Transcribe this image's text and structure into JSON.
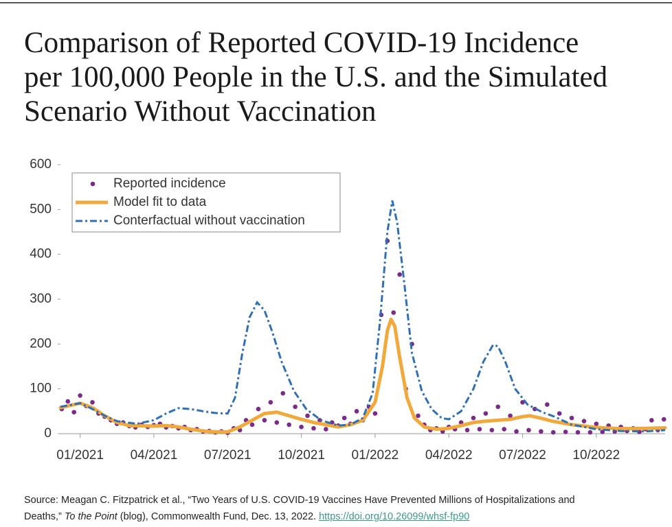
{
  "chart_data": {
    "type": "line",
    "title": [
      "Comparison of Reported COVID-19 Incidence",
      "per 100,000 People in the U.S. and the Simulated",
      "Scenario Without Vaccination"
    ],
    "xlim": [
      -0.8,
      23.8
    ],
    "xticks": [
      {
        "value": 0,
        "label": "01/2021"
      },
      {
        "value": 3,
        "label": "04/2021"
      },
      {
        "value": 6,
        "label": "07/2021"
      },
      {
        "value": 9,
        "label": "10/2021"
      },
      {
        "value": 12,
        "label": "01/2022"
      },
      {
        "value": 15,
        "label": "04/2022"
      },
      {
        "value": 18,
        "label": "07/2022"
      },
      {
        "value": 21,
        "label": "10/2022"
      }
    ],
    "ylim": [
      0,
      600
    ],
    "yticks": [
      0,
      100,
      200,
      300,
      400,
      500,
      600
    ],
    "legend": "top-left",
    "series": [
      {
        "name": "Reported incidence",
        "kind": "scatter",
        "color": "#7a2a8a",
        "x": [
          -0.75,
          -0.5,
          -0.25,
          0,
          0.25,
          0.5,
          0.75,
          1,
          1.25,
          1.5,
          1.75,
          2,
          2.25,
          2.5,
          2.75,
          3,
          3.25,
          3.5,
          3.75,
          4,
          4.25,
          4.5,
          4.75,
          5,
          5.25,
          5.5,
          5.75,
          6,
          6.25,
          6.5,
          6.75,
          7,
          7.25,
          7.5,
          7.75,
          8,
          8.25,
          8.5,
          8.75,
          9,
          9.25,
          9.5,
          9.75,
          10,
          10.25,
          10.5,
          10.75,
          11,
          11.25,
          11.5,
          11.75,
          12,
          12.25,
          12.5,
          12.75,
          13,
          13.25,
          13.5,
          13.75,
          14,
          14.25,
          14.5,
          14.75,
          15,
          15.25,
          15.5,
          15.75,
          16,
          16.25,
          16.5,
          16.75,
          17,
          17.25,
          17.5,
          17.75,
          18,
          18.25,
          18.5,
          18.75,
          19,
          19.25,
          19.5,
          19.75,
          20,
          20.25,
          20.5,
          20.75,
          21,
          21.25,
          21.5,
          21.75,
          22,
          22.25,
          22.5,
          22.75,
          23,
          23.25,
          23.5,
          23.75
        ],
        "values": [
          55,
          72,
          48,
          85,
          62,
          70,
          45,
          38,
          30,
          22,
          25,
          17,
          14,
          20,
          15,
          19,
          22,
          14,
          17,
          12,
          15,
          8,
          10,
          5,
          6,
          3,
          5,
          2,
          12,
          8,
          30,
          20,
          55,
          30,
          70,
          25,
          90,
          20,
          60,
          15,
          40,
          12,
          30,
          10,
          25,
          18,
          35,
          22,
          50,
          30,
          60,
          45,
          265,
          430,
          270,
          355,
          100,
          200,
          40,
          20,
          8,
          12,
          5,
          15,
          10,
          25,
          8,
          35,
          10,
          45,
          8,
          60,
          10,
          40,
          5,
          70,
          8,
          55,
          5,
          65,
          3,
          45,
          4,
          35,
          3,
          28,
          3,
          22,
          4,
          18,
          5,
          15,
          6,
          12,
          4,
          10,
          30,
          8,
          32
        ]
      },
      {
        "name": "Model fit to data",
        "kind": "line",
        "color": "#f0a93a",
        "x": [
          -0.8,
          0,
          0.5,
          1,
          1.5,
          2,
          3,
          3.5,
          4,
          4.5,
          5,
          5.5,
          6,
          6.5,
          7,
          7.5,
          8,
          8.5,
          9,
          9.5,
          10,
          10.5,
          11,
          11.5,
          12,
          12.3,
          12.5,
          12.65,
          12.8,
          13,
          13.3,
          13.6,
          14,
          14.5,
          15,
          15.5,
          16,
          16.5,
          17,
          17.5,
          18,
          18.3,
          18.7,
          19.2,
          20,
          21,
          22,
          23,
          23.8
        ],
        "values": [
          58,
          68,
          58,
          40,
          25,
          18,
          17,
          18,
          15,
          10,
          6,
          4,
          4,
          15,
          30,
          45,
          48,
          40,
          32,
          25,
          20,
          15,
          20,
          30,
          70,
          150,
          230,
          255,
          240,
          170,
          80,
          35,
          15,
          10,
          12,
          18,
          25,
          28,
          30,
          32,
          38,
          40,
          35,
          28,
          20,
          14,
          11,
          12,
          13
        ]
      },
      {
        "name": "Conterfactual without vaccination",
        "kind": "dashed",
        "color": "#2f6fb5",
        "x": [
          -0.8,
          0,
          0.5,
          1,
          1.5,
          2.3,
          3,
          3.5,
          4,
          4.5,
          5,
          5.5,
          6,
          6.3,
          6.6,
          6.9,
          7.2,
          7.5,
          7.8,
          8.2,
          8.7,
          9.2,
          9.8,
          10.5,
          11,
          11.5,
          11.9,
          12.2,
          12.5,
          12.7,
          12.9,
          13.2,
          13.5,
          13.9,
          14.3,
          14.7,
          15,
          15.5,
          16,
          16.4,
          16.8,
          17,
          17.3,
          17.7,
          18.2,
          18.8,
          19.3,
          20,
          21,
          22,
          23,
          23.8
        ],
        "values": [
          60,
          68,
          55,
          40,
          28,
          22,
          30,
          45,
          57,
          55,
          50,
          46,
          45,
          80,
          180,
          260,
          293,
          275,
          230,
          160,
          95,
          55,
          30,
          18,
          20,
          35,
          90,
          250,
          450,
          520,
          470,
          330,
          180,
          95,
          55,
          35,
          32,
          50,
          100,
          160,
          198,
          195,
          160,
          100,
          65,
          48,
          38,
          20,
          10,
          6,
          5,
          8
        ]
      }
    ]
  },
  "source": {
    "line1": "Source: Meagan C. Fitzpatrick et al., “Two Years of U.S. COVID-19 Vaccines Have Prevented Millions of Hospitalizations and",
    "pre": "Deaths,”",
    "italic": "To the Point",
    "post": "(blog), Commonwealth Fund, Dec. 13, 2022.",
    "link": "https://doi.org/10.26099/whsf-fp90"
  }
}
